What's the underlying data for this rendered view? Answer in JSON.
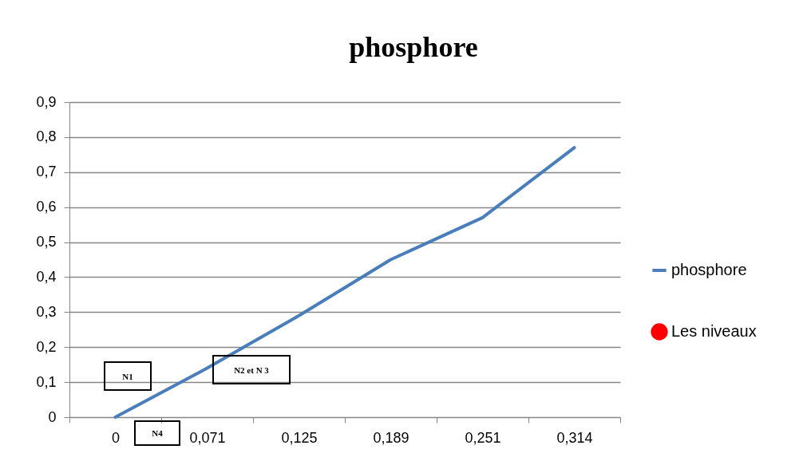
{
  "chart_data": {
    "type": "line",
    "title": "phosphore",
    "categories": [
      "0",
      "0,071",
      "0,125",
      "0,189",
      "0,251",
      "0,314"
    ],
    "series": [
      {
        "name": "phosphore",
        "color": "#4a7ebb",
        "values": [
          0,
          0.14,
          0.29,
          0.45,
          0.57,
          0.77
        ]
      },
      {
        "name": "Les niveaux",
        "type": "scatter",
        "color": "#ff0000",
        "values": [
          null,
          null,
          null,
          null,
          null,
          null
        ]
      }
    ],
    "ylim": [
      0,
      0.9
    ],
    "yticks": [
      {
        "value": 0,
        "label": "0"
      },
      {
        "value": 0.1,
        "label": "0,1"
      },
      {
        "value": 0.2,
        "label": "0,2"
      },
      {
        "value": 0.3,
        "label": "0,3"
      },
      {
        "value": 0.4,
        "label": "0,4"
      },
      {
        "value": 0.5,
        "label": "0,5"
      },
      {
        "value": 0.6,
        "label": "0,6"
      },
      {
        "value": 0.7,
        "label": "0,7"
      },
      {
        "value": 0.8,
        "label": "0,8"
      },
      {
        "value": 0.9,
        "label": "0,9"
      }
    ],
    "annotations": [
      "N1",
      "N2 et N 3",
      "N4"
    ],
    "grid": "y",
    "legend": "right",
    "marker": "none"
  }
}
